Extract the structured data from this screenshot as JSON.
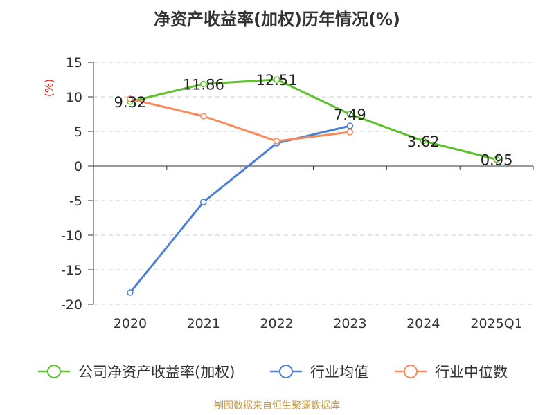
{
  "chart_data": {
    "type": "line",
    "title": "净资产收益率(加权)历年情况(%)",
    "ylabel": "(%)",
    "xlabel": "",
    "categories": [
      "2020",
      "2021",
      "2022",
      "2023",
      "2024",
      "2025Q1"
    ],
    "ylim": [
      -20,
      15
    ],
    "yticks": [
      15,
      10,
      5,
      0,
      -5,
      -10,
      -15,
      -20
    ],
    "grid": true,
    "legend_position": "bottom",
    "series": [
      {
        "name": "公司净资产收益率(加权)",
        "color": "#5cc12a",
        "values": [
          9.32,
          11.86,
          12.51,
          7.49,
          3.62,
          0.95
        ],
        "data_labels": [
          "9.32",
          "11.86",
          "12.51",
          "7.49",
          "3.62",
          "0.95"
        ]
      },
      {
        "name": "行业均值",
        "color": "#4a7fd6",
        "values": [
          -18.3,
          -5.2,
          3.3,
          5.8,
          null,
          null
        ],
        "data_labels": []
      },
      {
        "name": "行业中位数",
        "color": "#f78b5a",
        "values": [
          9.7,
          7.2,
          3.6,
          4.9,
          null,
          null
        ],
        "data_labels": []
      }
    ]
  },
  "footer": {
    "source": "制图数据来自恒生聚源数据库"
  }
}
